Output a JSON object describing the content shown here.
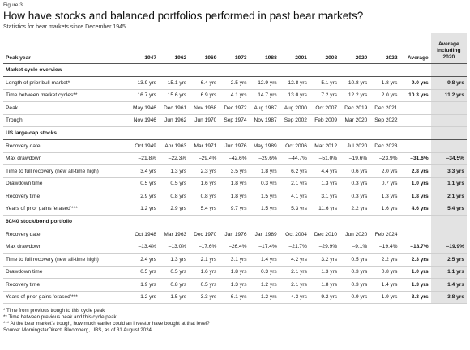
{
  "figure_label": "Figure 3",
  "title": "How have stocks and balanced portfolios performed in past bear markets?",
  "subtitle": "Statistics for bear markets since December 1945",
  "columns": [
    "Peak year",
    "1947",
    "1962",
    "1969",
    "1973",
    "1988",
    "2001",
    "2008",
    "2020",
    "2022",
    "Average",
    "Average including 2020"
  ],
  "sections": [
    {
      "title": "Market cycle overview",
      "rows": [
        {
          "label": "Length of prior bull market*",
          "values": [
            "13.9 yrs",
            "15.1 yrs",
            "6.4 yrs",
            "2.5 yrs",
            "12.9 yrs",
            "12.8 yrs",
            "5.1 yrs",
            "10.8 yrs",
            "1.8 yrs",
            "9.0 yrs",
            "9.8 yrs"
          ]
        },
        {
          "label": "Time between market cycles**",
          "values": [
            "16.7 yrs",
            "15.6 yrs",
            "6.9 yrs",
            "4.1 yrs",
            "14.7 yrs",
            "13.0 yrs",
            "7.2 yrs",
            "12.2 yrs",
            "2.0 yrs",
            "10.3 yrs",
            "11.2 yrs"
          ]
        },
        {
          "label": "Peak",
          "values": [
            "May 1946",
            "Dec 1961",
            "Nov 1968",
            "Dec 1972",
            "Aug 1987",
            "Aug 2000",
            "Oct 2007",
            "Dec 2019",
            "Dec 2021",
            "",
            ""
          ]
        },
        {
          "label": "Trough",
          "values": [
            "Nov 1946",
            "Jun 1962",
            "Jun 1970",
            "Sep 1974",
            "Nov 1987",
            "Sep 2002",
            "Feb 2009",
            "Mar 2020",
            "Sep 2022",
            "",
            ""
          ]
        }
      ]
    },
    {
      "title": "US large-cap stocks",
      "rows": [
        {
          "label": "Recovery date",
          "values": [
            "Oct 1949",
            "Apr 1963",
            "Mar 1971",
            "Jun 1976",
            "May 1989",
            "Oct 2006",
            "Mar 2012",
            "Jul 2020",
            "Dec 2023",
            "",
            ""
          ]
        },
        {
          "label": "Max drawdown",
          "values": [
            "–21.8%",
            "–22.3%",
            "–29.4%",
            "–42.6%",
            "–29.6%",
            "–44.7%",
            "–51.0%",
            "–19.6%",
            "–23.9%",
            "–31.6%",
            "–34.5%"
          ]
        },
        {
          "label": "Time to full recovery (new all-time high)",
          "values": [
            "3.4 yrs",
            "1.3 yrs",
            "2.3 yrs",
            "3.5 yrs",
            "1.8 yrs",
            "6.2 yrs",
            "4.4 yrs",
            "0.6 yrs",
            "2.0 yrs",
            "2.8 yrs",
            "3.3 yrs"
          ]
        },
        {
          "label": "Drawdown time",
          "values": [
            "0.5 yrs",
            "0.5 yrs",
            "1.6 yrs",
            "1.8 yrs",
            "0.3 yrs",
            "2.1 yrs",
            "1.3 yrs",
            "0.3 yrs",
            "0.7 yrs",
            "1.0 yrs",
            "1.1 yrs"
          ]
        },
        {
          "label": "Recovery time",
          "values": [
            "2.9 yrs",
            "0.8 yrs",
            "0.8 yrs",
            "1.8 yrs",
            "1.5 yrs",
            "4.1 yrs",
            "3.1 yrs",
            "0.3 yrs",
            "1.3 yrs",
            "1.8 yrs",
            "2.1 yrs"
          ]
        },
        {
          "label": "Years of prior gains 'erased'***",
          "values": [
            "1.2 yrs",
            "2.9 yrs",
            "5.4 yrs",
            "9.7 yrs",
            "1.5 yrs",
            "5.3 yrs",
            "11.6 yrs",
            "2.2 yrs",
            "1.6 yrs",
            "4.6 yrs",
            "5.4 yrs"
          ]
        }
      ]
    },
    {
      "title": "60/40 stock/bond portfolio",
      "rows": [
        {
          "label": "Recovery date",
          "values": [
            "Oct 1948",
            "Mar 1963",
            "Dec 1970",
            "Jan 1976",
            "Jan 1989",
            "Oct 2004",
            "Dec 2010",
            "Jun 2020",
            "Feb 2024",
            "",
            ""
          ]
        },
        {
          "label": "Max drawdown",
          "values": [
            "–13.4%",
            "–13.0%",
            "–17.6%",
            "–26.4%",
            "–17.4%",
            "–21.7%",
            "–29.9%",
            "–9.1%",
            "–19.4%",
            "–18.7%",
            "–19.9%"
          ]
        },
        {
          "label": "Time to full recovery (new all-time high)",
          "values": [
            "2.4 yrs",
            "1.3 yrs",
            "2.1 yrs",
            "3.1 yrs",
            "1.4 yrs",
            "4.2 yrs",
            "3.2 yrs",
            "0.5 yrs",
            "2.2 yrs",
            "2.3 yrs",
            "2.5 yrs"
          ]
        },
        {
          "label": "Drawdown time",
          "values": [
            "0.5 yrs",
            "0.5 yrs",
            "1.6 yrs",
            "1.8 yrs",
            "0.3 yrs",
            "2.1 yrs",
            "1.3 yrs",
            "0.3 yrs",
            "0.8 yrs",
            "1.0 yrs",
            "1.1 yrs"
          ]
        },
        {
          "label": "Recovery time",
          "values": [
            "1.9 yrs",
            "0.8 yrs",
            "0.5 yrs",
            "1.3 yrs",
            "1.2 yrs",
            "2.1 yrs",
            "1.8 yrs",
            "0.3 yrs",
            "1.4 yrs",
            "1.3 yrs",
            "1.4 yrs"
          ]
        },
        {
          "label": "Years of prior gains 'erased'***",
          "values": [
            "1.2 yrs",
            "1.5 yrs",
            "3.3 yrs",
            "6.1 yrs",
            "1.2 yrs",
            "4.3 yrs",
            "9.2 yrs",
            "0.9 yrs",
            "1.9 yrs",
            "3.3 yrs",
            "3.8 yrs"
          ]
        }
      ]
    }
  ],
  "footnotes": [
    "* Time from previous trough to this cycle peak",
    "** Time between previous peak and this cycle peak",
    "*** At the bear market's trough, how much earlier could an investor have bought at that level?",
    "Source: MorningstarDirect, Bloomberg, UBS, as of 31 August 2024"
  ]
}
